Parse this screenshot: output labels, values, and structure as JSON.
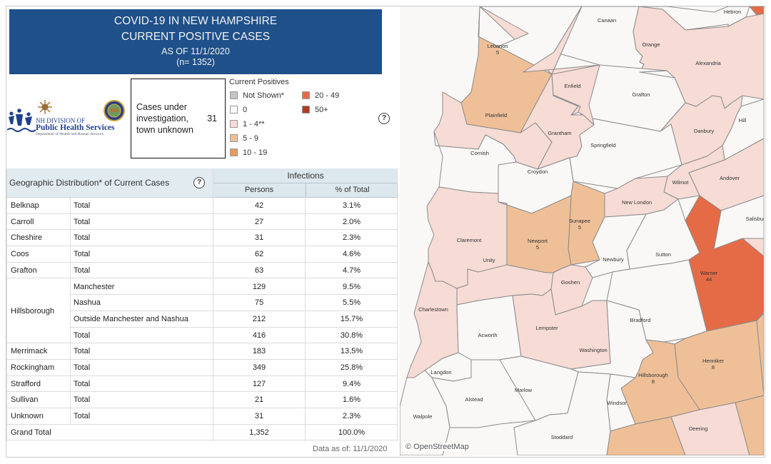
{
  "banner": {
    "line1": "COVID-19 IN NEW HAMPSHIRE",
    "line2": "CURRENT POSITIVE CASES",
    "line3": "AS OF 11/1/2020",
    "line4": "(n= 1352)"
  },
  "logo": {
    "line1": "NH DIVISION OF",
    "line2": "Public Health Services",
    "line3": "Department of Health and Human Services"
  },
  "cases_box": {
    "label": "Cases under investigation, town unknown",
    "value": "31"
  },
  "legend": {
    "title": "Current Positives",
    "items": [
      {
        "label": "Not Shown*",
        "color": "#c4c4c4"
      },
      {
        "label": "0",
        "color": "#f9f8f6"
      },
      {
        "label": "1 - 4**",
        "color": "#f6dcd5"
      },
      {
        "label": "5 - 9",
        "color": "#efc098"
      },
      {
        "label": "10 - 19",
        "color": "#e99a5e"
      },
      {
        "label": "20 - 49",
        "color": "#e56b47"
      },
      {
        "label": "50+",
        "color": "#a8401f"
      }
    ]
  },
  "help_icon_glyph": "?",
  "table": {
    "title": "Geographic Distribution* of Current Cases",
    "group_header": "Infections",
    "col_persons": "Persons",
    "col_pct": "% of Total",
    "rows": [
      {
        "county": "Belknap",
        "sub": "Total",
        "persons": "42",
        "pct": "3.1%"
      },
      {
        "county": "Carroll",
        "sub": "Total",
        "persons": "27",
        "pct": "2.0%"
      },
      {
        "county": "Cheshire",
        "sub": "Total",
        "persons": "31",
        "pct": "2.3%"
      },
      {
        "county": "Coos",
        "sub": "Total",
        "persons": "62",
        "pct": "4.6%"
      },
      {
        "county": "Grafton",
        "sub": "Total",
        "persons": "63",
        "pct": "4.7%"
      },
      {
        "county": "",
        "sub": "Manchester",
        "persons": "129",
        "pct": "9.5%"
      },
      {
        "county": "Hillsborough",
        "sub": "Nashua",
        "persons": "75",
        "pct": "5.5%"
      },
      {
        "county": "",
        "sub": "Outside Manchester and Nashua",
        "persons": "212",
        "pct": "15.7%"
      },
      {
        "county": "",
        "sub": "Total",
        "persons": "416",
        "pct": "30.8%"
      },
      {
        "county": "Merrimack",
        "sub": "Total",
        "persons": "183",
        "pct": "13.5%"
      },
      {
        "county": "Rockingham",
        "sub": "Total",
        "persons": "349",
        "pct": "25.8%"
      },
      {
        "county": "Strafford",
        "sub": "Total",
        "persons": "127",
        "pct": "9.4%"
      },
      {
        "county": "Sullivan",
        "sub": "Total",
        "persons": "21",
        "pct": "1.6%"
      },
      {
        "county": "Unknown",
        "sub": "Total",
        "persons": "31",
        "pct": "2.3%"
      }
    ],
    "grand_total": {
      "label": "Grand Total",
      "persons": "1,352",
      "pct": "100.0%"
    }
  },
  "data_as_of": "Data as of:  11/1/2020",
  "map": {
    "attribution": "© OpenStreetMap",
    "towns": [
      {
        "name": "Lebanon",
        "value": "5",
        "bin": "5 - 9"
      },
      {
        "name": "Canaan",
        "value": "",
        "bin": "0"
      },
      {
        "name": "Orange",
        "value": "",
        "bin": "0"
      },
      {
        "name": "Hebron",
        "value": "",
        "bin": "0"
      },
      {
        "name": "Alexandria",
        "value": "",
        "bin": "1 - 4**"
      },
      {
        "name": "Enfield",
        "value": "",
        "bin": "1 - 4**"
      },
      {
        "name": "Grafton",
        "value": "",
        "bin": "0"
      },
      {
        "name": "Plainfield",
        "value": "",
        "bin": "1 - 4**"
      },
      {
        "name": "Grantham",
        "value": "",
        "bin": "1 - 4**"
      },
      {
        "name": "Danbury",
        "value": "",
        "bin": "1 - 4**"
      },
      {
        "name": "Hill",
        "value": "",
        "bin": "0"
      },
      {
        "name": "Springfield",
        "value": "",
        "bin": "0"
      },
      {
        "name": "Cornish",
        "value": "",
        "bin": "0"
      },
      {
        "name": "Croydon",
        "value": "",
        "bin": "0"
      },
      {
        "name": "Wilmot",
        "value": "",
        "bin": "1 - 4**"
      },
      {
        "name": "Andover",
        "value": "",
        "bin": "1 - 4**"
      },
      {
        "name": "New London",
        "value": "",
        "bin": "1 - 4**"
      },
      {
        "name": "Salisbury",
        "value": "",
        "bin": "0"
      },
      {
        "name": "Sunapee",
        "value": "5",
        "bin": "5 - 9"
      },
      {
        "name": "Claremont",
        "value": "",
        "bin": "1 - 4**"
      },
      {
        "name": "Newport",
        "value": "5",
        "bin": "5 - 9"
      },
      {
        "name": "Newbury",
        "value": "",
        "bin": "0"
      },
      {
        "name": "Sutton",
        "value": "",
        "bin": "0"
      },
      {
        "name": "Warner",
        "value": "44",
        "bin": "20 - 49"
      },
      {
        "name": "Unity",
        "value": "",
        "bin": "1 - 4**"
      },
      {
        "name": "Goshen",
        "value": "",
        "bin": "1 - 4**"
      },
      {
        "name": "Charlestown",
        "value": "",
        "bin": "1 - 4**"
      },
      {
        "name": "Bradford",
        "value": "",
        "bin": "0"
      },
      {
        "name": "Acworth",
        "value": "",
        "bin": "0"
      },
      {
        "name": "Lempster",
        "value": "",
        "bin": "1 - 4**"
      },
      {
        "name": "Washington",
        "value": "",
        "bin": "0"
      },
      {
        "name": "Henniker",
        "value": "8",
        "bin": "5 - 9"
      },
      {
        "name": "Hillsborough",
        "value": "8",
        "bin": "5 - 9"
      },
      {
        "name": "Langdon",
        "value": "",
        "bin": "0"
      },
      {
        "name": "Alstead",
        "value": "",
        "bin": "0"
      },
      {
        "name": "Marlow",
        "value": "",
        "bin": "0"
      },
      {
        "name": "Windsor",
        "value": "",
        "bin": "0"
      },
      {
        "name": "Walpole",
        "value": "",
        "bin": "0"
      },
      {
        "name": "Deering",
        "value": "",
        "bin": "1 - 4**"
      },
      {
        "name": "Stoddard",
        "value": "",
        "bin": "0"
      }
    ]
  }
}
